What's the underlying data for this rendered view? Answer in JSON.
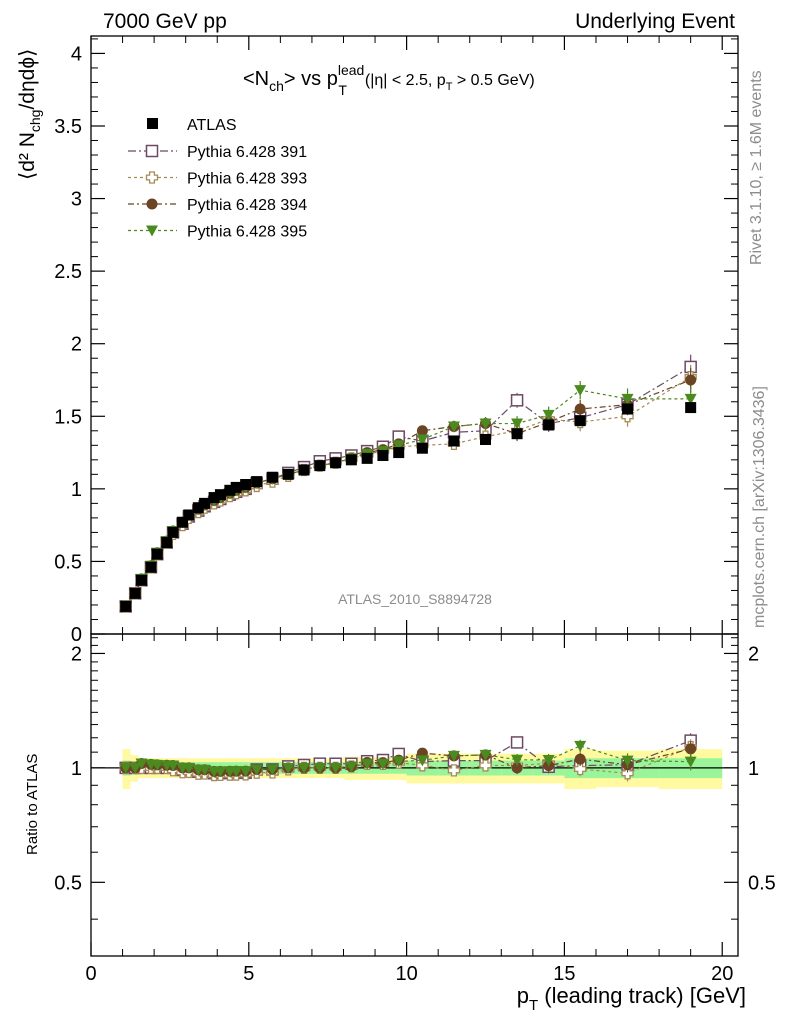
{
  "header": {
    "left": "7000 GeV pp",
    "right": "Underlying Event"
  },
  "side": {
    "rivet": "Rivet 3.1.10, ≥ 1.6M events",
    "mcplots": "mcplots.cern.ch [arXiv:1306.3436]"
  },
  "chart_data": {
    "type": "scatter",
    "title": {
      "main": "<N",
      "sub1": "ch",
      "mid": "> vs p",
      "sup": "lead",
      "sub2": "T",
      "small": "(|η| < 2.5, p",
      "small_sub": "T",
      "small_end": " > 0.5 GeV)"
    },
    "analysis_tag": "ATLAS_2010_S8894728",
    "xlabel": "p",
    "xlabel_sub": "T",
    "xlabel_rest": " (leading track) [GeV]",
    "ylabel": "⟨d² N",
    "ylabel_sub": "chg",
    "ylabel_rest": "/dηdϕ⟩",
    "ratio_ylabel": "Ratio to ATLAS",
    "xlim": [
      0,
      20.5
    ],
    "ylim": [
      0,
      4.12
    ],
    "ratio_ylim": [
      0.32,
      2.25
    ],
    "x_ticks": [
      "0",
      "5",
      "10",
      "15",
      "20"
    ],
    "y_ticks": [
      "0",
      "0.5",
      "1",
      "1.5",
      "2",
      "2.5",
      "3",
      "3.5",
      "4"
    ],
    "ratio_ticks": [
      "0.5",
      "1",
      "2"
    ],
    "legend_position": "top-left",
    "x": [
      1.1,
      1.4,
      1.6,
      1.9,
      2.1,
      2.4,
      2.6,
      2.9,
      3.1,
      3.4,
      3.6,
      3.9,
      4.1,
      4.4,
      4.6,
      4.9,
      5.25,
      5.75,
      6.25,
      6.75,
      7.25,
      7.75,
      8.25,
      8.75,
      9.25,
      9.75,
      10.5,
      11.5,
      12.5,
      13.5,
      14.5,
      15.5,
      17.0,
      19.0
    ],
    "atlas": [
      0.19,
      0.28,
      0.37,
      0.46,
      0.55,
      0.63,
      0.7,
      0.77,
      0.82,
      0.87,
      0.9,
      0.94,
      0.96,
      0.99,
      1.01,
      1.03,
      1.05,
      1.08,
      1.1,
      1.13,
      1.16,
      1.18,
      1.2,
      1.21,
      1.23,
      1.25,
      1.28,
      1.33,
      1.34,
      1.38,
      1.44,
      1.47,
      1.55,
      1.56
    ],
    "series": [
      {
        "name": "Pythia 6.428 391",
        "marker": "square-open",
        "color": "#6b4a64",
        "values": [
          0.19,
          0.28,
          0.37,
          0.46,
          0.55,
          0.63,
          0.7,
          0.76,
          0.81,
          0.85,
          0.88,
          0.91,
          0.93,
          0.96,
          0.98,
          1.0,
          1.04,
          1.07,
          1.11,
          1.15,
          1.19,
          1.21,
          1.23,
          1.26,
          1.29,
          1.36,
          1.33,
          1.39,
          1.4,
          1.61,
          1.45,
          1.49,
          1.58,
          1.84
        ]
      },
      {
        "name": "Pythia 6.428 393",
        "marker": "cross-open",
        "color": "#a68a55",
        "values": [
          0.19,
          0.28,
          0.37,
          0.46,
          0.55,
          0.63,
          0.69,
          0.75,
          0.8,
          0.84,
          0.87,
          0.9,
          0.92,
          0.95,
          0.97,
          0.99,
          1.02,
          1.05,
          1.09,
          1.13,
          1.16,
          1.18,
          1.21,
          1.24,
          1.26,
          1.29,
          1.3,
          1.31,
          1.36,
          1.4,
          1.48,
          1.46,
          1.5,
          1.77
        ]
      },
      {
        "name": "Pythia 6.428 394",
        "marker": "circle",
        "color": "#6b4423",
        "values": [
          0.19,
          0.28,
          0.38,
          0.47,
          0.56,
          0.64,
          0.71,
          0.77,
          0.82,
          0.86,
          0.89,
          0.92,
          0.94,
          0.97,
          0.99,
          1.01,
          1.04,
          1.07,
          1.1,
          1.13,
          1.16,
          1.18,
          1.21,
          1.25,
          1.27,
          1.31,
          1.4,
          1.43,
          1.45,
          1.38,
          1.46,
          1.55,
          1.58,
          1.75
        ]
      },
      {
        "name": "Pythia 6.428 395",
        "marker": "triangle-down",
        "color": "#4b8a1f",
        "values": [
          0.19,
          0.28,
          0.38,
          0.47,
          0.56,
          0.64,
          0.71,
          0.77,
          0.82,
          0.86,
          0.89,
          0.92,
          0.94,
          0.97,
          0.99,
          1.01,
          1.04,
          1.07,
          1.1,
          1.13,
          1.16,
          1.18,
          1.21,
          1.24,
          1.26,
          1.3,
          1.34,
          1.43,
          1.45,
          1.45,
          1.51,
          1.68,
          1.62,
          1.62
        ]
      }
    ],
    "band_x": [
      1.0,
      1.25,
      1.5,
      2.0,
      2.5,
      3.0,
      3.5,
      4.0,
      4.5,
      5.0,
      5.5,
      6.0,
      6.5,
      7.0,
      7.5,
      8.0,
      8.5,
      9.0,
      9.5,
      10.0,
      11.0,
      12.0,
      13.0,
      14.0,
      15.0,
      16.0,
      18.0,
      20.0
    ],
    "band_inner": [
      0.045,
      0.04,
      0.035,
      0.035,
      0.035,
      0.035,
      0.035,
      0.035,
      0.035,
      0.035,
      0.035,
      0.035,
      0.035,
      0.035,
      0.035,
      0.035,
      0.035,
      0.035,
      0.035,
      0.045,
      0.045,
      0.045,
      0.045,
      0.045,
      0.06,
      0.06,
      0.06
    ],
    "band_outer": [
      0.12,
      0.08,
      0.06,
      0.06,
      0.06,
      0.06,
      0.06,
      0.06,
      0.06,
      0.06,
      0.06,
      0.06,
      0.06,
      0.06,
      0.06,
      0.07,
      0.07,
      0.07,
      0.07,
      0.09,
      0.09,
      0.09,
      0.09,
      0.09,
      0.12,
      0.11,
      0.12
    ]
  }
}
